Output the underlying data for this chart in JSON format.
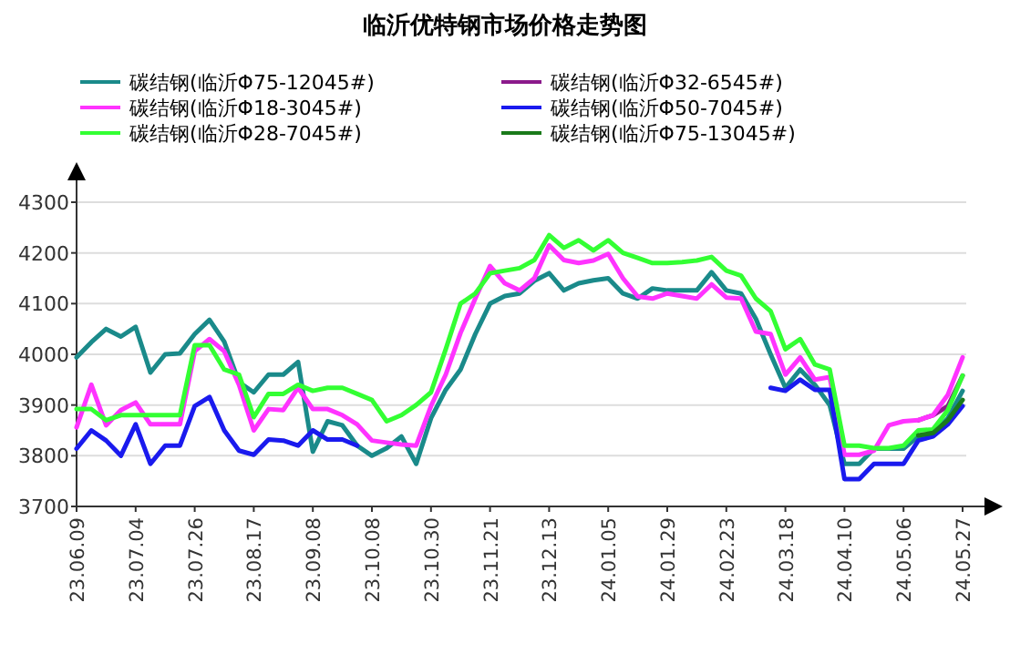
{
  "chart_data": {
    "type": "line",
    "title": "临沂优特钢市场价格走势图",
    "categories": [
      "23.06.09",
      null,
      null,
      null,
      "23.07.04",
      null,
      null,
      null,
      "23.07.26",
      null,
      null,
      null,
      "23.08.17",
      null,
      null,
      null,
      "23.09.08",
      null,
      null,
      null,
      "23.10.08",
      null,
      null,
      null,
      "23.10.30",
      null,
      null,
      null,
      "23.11.21",
      null,
      null,
      null,
      "23.12.13",
      null,
      null,
      null,
      "24.01.05",
      null,
      null,
      null,
      "24.01.29",
      null,
      null,
      null,
      "24.02.23",
      null,
      null,
      null,
      "24.03.18",
      null,
      null,
      null,
      "24.04.10",
      null,
      null,
      null,
      "24.05.06",
      null,
      null,
      null,
      "24.05.27"
    ],
    "series": [
      {
        "name": "碳结钢(临沂Φ75-12045#)",
        "color": "#1a8a8a",
        "values": [
          3994,
          4024,
          4050,
          4035,
          4054,
          3964,
          4000,
          4002,
          4040,
          4068,
          4025,
          3945,
          3925,
          3960,
          3960,
          3985,
          3808,
          3868,
          3860,
          3820,
          3800,
          3815,
          3838,
          3784,
          3874,
          3930,
          3970,
          4040,
          4100,
          4115,
          4120,
          4145,
          4160,
          4126,
          4140,
          4146,
          4150,
          4120,
          4110,
          4130,
          4126,
          4126,
          4126,
          4162,
          4126,
          4120,
          4070,
          4000,
          3934,
          3970,
          3940,
          3900,
          3784,
          3784,
          3814,
          3814,
          3814,
          3838,
          3844,
          3874,
          3928
        ]
      },
      {
        "name": "碳结钢(临沂Φ32-6545#)",
        "color": "#8b1a8b",
        "values": [
          null,
          null,
          null,
          null,
          null,
          null,
          null,
          null,
          null,
          null,
          null,
          null,
          null,
          null,
          null,
          null,
          null,
          null,
          null,
          null,
          null,
          null,
          null,
          null,
          null,
          null,
          null,
          null,
          null,
          null,
          null,
          null,
          null,
          null,
          null,
          null,
          null,
          null,
          null,
          null,
          null,
          null,
          null,
          null,
          null,
          null,
          null,
          null,
          null,
          null,
          null,
          null,
          null,
          null,
          null,
          null,
          null,
          3870,
          3880,
          3898,
          3958
        ]
      },
      {
        "name": "碳结钢(临沂Φ18-3045#)",
        "color": "#ff33ff",
        "values": [
          3856,
          3940,
          3860,
          3890,
          3905,
          3862,
          3862,
          3862,
          4006,
          4030,
          4006,
          3940,
          3850,
          3892,
          3890,
          3934,
          3892,
          3892,
          3880,
          3862,
          3830,
          3826,
          3822,
          3820,
          3898,
          3960,
          4042,
          4110,
          4174,
          4140,
          4126,
          4150,
          4215,
          4186,
          4180,
          4185,
          4198,
          4150,
          4114,
          4110,
          4120,
          4115,
          4110,
          4138,
          4112,
          4110,
          4045,
          4040,
          3960,
          3994,
          3950,
          3955,
          3802,
          3802,
          3810,
          3860,
          3868,
          3870,
          3880,
          3920,
          3994
        ]
      },
      {
        "name": "碳结钢(临沂Φ50-7045#)",
        "color": "#1a1aee",
        "values": [
          3814,
          3850,
          3830,
          3800,
          3862,
          3784,
          3820,
          3820,
          3898,
          3916,
          3850,
          3810,
          3802,
          3832,
          3830,
          3820,
          3850,
          3832,
          3832,
          3820,
          null,
          null,
          null,
          null,
          null,
          null,
          null,
          null,
          null,
          null,
          null,
          null,
          null,
          null,
          null,
          null,
          null,
          null,
          null,
          null,
          null,
          null,
          null,
          null,
          null,
          null,
          null,
          3934,
          3928,
          3950,
          3930,
          3930,
          3754,
          3754,
          3784,
          3784,
          3784,
          3830,
          3838,
          3862,
          3898
        ]
      },
      {
        "name": "碳结钢(临沂Φ28-7045#)",
        "color": "#33ff33",
        "values": [
          3892,
          3892,
          3870,
          3880,
          3880,
          3880,
          3880,
          3880,
          4018,
          4018,
          3970,
          3960,
          3876,
          3922,
          3922,
          3940,
          3928,
          3934,
          3934,
          3922,
          3910,
          3868,
          3880,
          3900,
          3925,
          4010,
          4100,
          4120,
          4160,
          4165,
          4170,
          4186,
          4235,
          4210,
          4225,
          4205,
          4225,
          4200,
          4190,
          4180,
          4180,
          4182,
          4185,
          4192,
          4165,
          4155,
          4110,
          4085,
          4010,
          4030,
          3980,
          3970,
          3820,
          3820,
          3815,
          3815,
          3820,
          3850,
          3852,
          3890,
          3958
        ]
      },
      {
        "name": "碳结钢(临沂Φ75-13045#)",
        "color": "#1a7a1a",
        "values": [
          null,
          null,
          null,
          null,
          null,
          null,
          null,
          null,
          null,
          null,
          null,
          null,
          null,
          null,
          null,
          null,
          null,
          null,
          null,
          null,
          null,
          null,
          null,
          null,
          null,
          null,
          null,
          null,
          null,
          null,
          null,
          null,
          null,
          null,
          null,
          null,
          null,
          null,
          null,
          null,
          null,
          null,
          null,
          null,
          null,
          null,
          null,
          null,
          null,
          null,
          null,
          null,
          null,
          null,
          null,
          null,
          null,
          3840,
          3845,
          3870,
          3910
        ]
      }
    ],
    "ylim": [
      3700,
      4300
    ],
    "yticks": [
      3700,
      3800,
      3900,
      4000,
      4100,
      4200,
      4300
    ],
    "grid": "y",
    "legend": "top"
  }
}
